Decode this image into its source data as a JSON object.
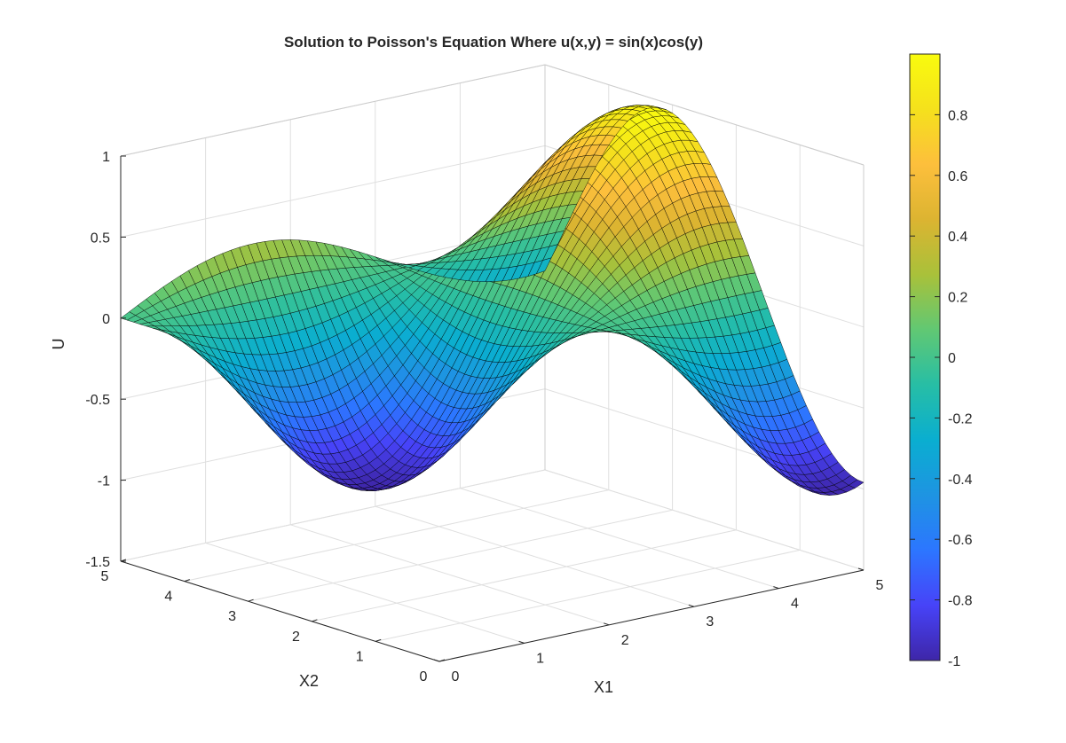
{
  "chart_data": {
    "type": "surface",
    "title": "Solution to Poisson's Equation Where u(x,y) = sin(x)cos(y)",
    "xlabel": "X1",
    "ylabel": "X2",
    "zlabel": "U",
    "function": "u(x,y) = sin(x)cos(y)",
    "xlim": [
      0,
      5
    ],
    "ylim": [
      0,
      5
    ],
    "zlim": [
      -1.5,
      1
    ],
    "x_ticks": [
      "0",
      "1",
      "2",
      "3",
      "4",
      "5"
    ],
    "y_ticks": [
      "0",
      "1",
      "2",
      "3",
      "4",
      "5"
    ],
    "z_ticks": [
      "-1.5",
      "-1",
      "-0.5",
      "0",
      "0.5",
      "1"
    ],
    "grid": true,
    "colormap": "parula",
    "colorbar": {
      "range": [
        -1,
        1
      ],
      "ticks": [
        "-1",
        "-0.8",
        "-0.6",
        "-0.4",
        "-0.2",
        "0",
        "0.2",
        "0.4",
        "0.6",
        "0.8"
      ],
      "placement": "right"
    },
    "colormap_stops": [
      "#3e26a8",
      "#4743f8",
      "#2c76ff",
      "#1e94e2",
      "#0aaed0",
      "#27bea5",
      "#61c873",
      "#a9c13a",
      "#dcb431",
      "#fdbf3c",
      "#f5e11c",
      "#f9fb0e"
    ]
  }
}
